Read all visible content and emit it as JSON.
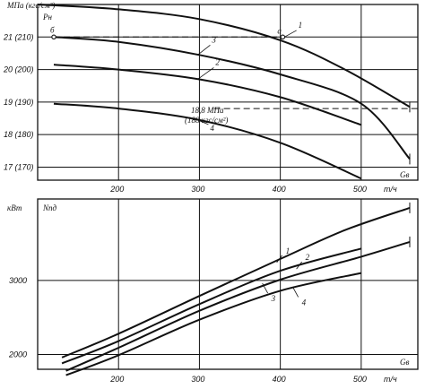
{
  "chart_data": [
    {
      "type": "line",
      "ylabel": "Pн",
      "yunit": "МПа (кгс/см²)",
      "xlabel": "Gв",
      "xunit": "т/ч",
      "xlim": [
        100,
        570
      ],
      "ylim": [
        16.6,
        22.0
      ],
      "xticks": [
        200,
        300,
        400,
        500
      ],
      "yticks": [
        {
          "value": 21,
          "label": "21 (210)"
        },
        {
          "value": 20,
          "label": "20 (200)"
        },
        {
          "value": 19,
          "label": "19 (190)"
        },
        {
          "value": 18,
          "label": "18 (180)"
        },
        {
          "value": 17,
          "label": "17 (170)"
        }
      ],
      "series": [
        {
          "name": "1",
          "x": [
            100,
            200,
            300,
            400,
            480,
            560
          ],
          "y": [
            22.0,
            21.85,
            21.55,
            20.9,
            20.0,
            18.85
          ]
        },
        {
          "name": "2",
          "x": [
            120,
            200,
            300,
            400,
            500
          ],
          "y": [
            20.15,
            20.0,
            19.7,
            19.15,
            18.3
          ]
        },
        {
          "name": "3",
          "x": [
            120,
            200,
            300,
            400,
            500,
            560
          ],
          "y": [
            21.0,
            20.85,
            20.45,
            19.85,
            18.95,
            17.25
          ]
        },
        {
          "name": "4",
          "x": [
            120,
            200,
            300,
            400,
            500
          ],
          "y": [
            18.95,
            18.8,
            18.45,
            17.75,
            16.65
          ]
        }
      ],
      "reference_line": {
        "label_top": "18,8 МПа",
        "label_bottom": "(188 кгс/см²)",
        "y": 18.8
      },
      "point_a": {
        "label": "а",
        "x": 403,
        "y": 21.0
      },
      "point_b": {
        "label": "б",
        "x": 120,
        "y": 21.0
      }
    },
    {
      "type": "line",
      "ylabel": "Nпд",
      "yunit": "кВт",
      "xlabel": "Gв",
      "xunit": "т/ч",
      "xlim": [
        100,
        570
      ],
      "ylim": [
        1800,
        4100
      ],
      "xticks": [
        200,
        300,
        400,
        500
      ],
      "yticks": [
        {
          "value": 3000,
          "label": "3000"
        },
        {
          "value": 2000,
          "label": "2000"
        }
      ],
      "series": [
        {
          "name": "1",
          "x": [
            130,
            200,
            300,
            400,
            480,
            560
          ],
          "y": [
            1960,
            2280,
            2790,
            3290,
            3680,
            3980
          ]
        },
        {
          "name": "2",
          "x": [
            130,
            200,
            300,
            400,
            500
          ],
          "y": [
            1880,
            2180,
            2680,
            3130,
            3430
          ]
        },
        {
          "name": "3",
          "x": [
            135,
            200,
            300,
            400,
            500,
            560
          ],
          "y": [
            1780,
            2090,
            2590,
            3010,
            3320,
            3520
          ]
        },
        {
          "name": "4",
          "x": [
            135,
            200,
            300,
            400,
            500
          ],
          "y": [
            1720,
            1990,
            2470,
            2860,
            3100
          ]
        }
      ]
    }
  ]
}
